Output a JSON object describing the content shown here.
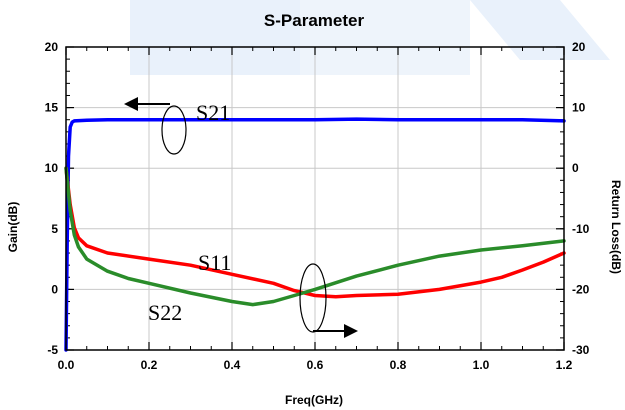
{
  "chart_data": {
    "type": "line",
    "title": "S-Parameter",
    "xlabel": "Freq(GHz)",
    "ylabel": "Gain(dB)",
    "y2label": "Return Loss(dB)",
    "xlim": [
      0.0,
      1.2
    ],
    "ylim": [
      -5,
      20
    ],
    "y2lim": [
      -30,
      20
    ],
    "xticks": [
      "0.0",
      "0.2",
      "0.4",
      "0.6",
      "0.8",
      "1.0",
      "1.2"
    ],
    "yticks": [
      "-5",
      "0",
      "5",
      "10",
      "15",
      "20"
    ],
    "y2ticks": [
      "-30",
      "-20",
      "-10",
      "0",
      "10",
      "20"
    ],
    "grid": true,
    "annotations": [
      "S21",
      "S11",
      "S22"
    ],
    "series": [
      {
        "name": "S21",
        "axis": "left",
        "color": "#0000ff",
        "x": [
          0.0,
          0.003,
          0.006,
          0.01,
          0.015,
          0.02,
          0.05,
          0.1,
          0.2,
          0.3,
          0.4,
          0.5,
          0.6,
          0.7,
          0.8,
          0.9,
          1.0,
          1.1,
          1.2
        ],
        "y": [
          -5.0,
          4.0,
          11.0,
          13.4,
          13.8,
          13.9,
          13.95,
          14.0,
          14.0,
          14.0,
          14.0,
          14.0,
          14.0,
          14.05,
          14.0,
          14.0,
          14.0,
          14.0,
          13.9
        ]
      },
      {
        "name": "S11",
        "axis": "right",
        "color": "#ff0000",
        "x": [
          0.0,
          0.01,
          0.02,
          0.03,
          0.05,
          0.1,
          0.2,
          0.3,
          0.4,
          0.5,
          0.55,
          0.6,
          0.65,
          0.7,
          0.8,
          0.9,
          1.0,
          1.05,
          1.1,
          1.15,
          1.2
        ],
        "y": [
          0.0,
          -6.0,
          -9.8,
          -11.5,
          -12.8,
          -14.0,
          -15.0,
          -16.0,
          -17.5,
          -19.0,
          -20.2,
          -21.0,
          -21.2,
          -21.0,
          -20.8,
          -20.0,
          -18.8,
          -18.0,
          -16.8,
          -15.5,
          -14.0
        ]
      },
      {
        "name": "S22",
        "axis": "right",
        "color": "#2a8c2a",
        "x": [
          0.0,
          0.01,
          0.02,
          0.03,
          0.05,
          0.1,
          0.15,
          0.2,
          0.3,
          0.4,
          0.45,
          0.5,
          0.55,
          0.6,
          0.7,
          0.8,
          0.9,
          1.0,
          1.1,
          1.2
        ],
        "y": [
          0.0,
          -7.0,
          -11.0,
          -13.0,
          -15.0,
          -17.0,
          -18.2,
          -19.0,
          -20.6,
          -22.0,
          -22.5,
          -22.0,
          -21.0,
          -20.0,
          -17.8,
          -16.0,
          -14.5,
          -13.5,
          -12.8,
          -12.0
        ]
      }
    ]
  }
}
